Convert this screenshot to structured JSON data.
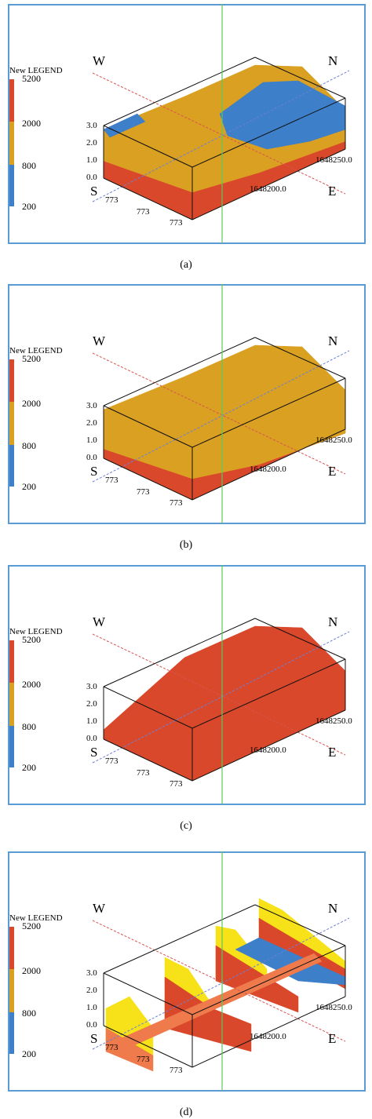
{
  "panels": [
    {
      "caption": "(a)",
      "legend": {
        "title": "New LEGEND",
        "labels": [
          "5200",
          "2000",
          "800",
          "200"
        ]
      },
      "compass": {
        "w": "W",
        "n": "N",
        "s": "S",
        "e": "E"
      },
      "z_labels": [
        "3.0",
        "2.0",
        "1.0",
        "0.0"
      ],
      "x_labels": [
        "773",
        "773",
        "773"
      ],
      "y_labels": [
        "1648250.0",
        "1648200.0"
      ]
    },
    {
      "caption": "(b)",
      "legend": {
        "title": "New LEGEND",
        "labels": [
          "5200",
          "2000",
          "800",
          "200"
        ]
      },
      "compass": {
        "w": "W",
        "n": "N",
        "s": "S",
        "e": "E"
      },
      "z_labels": [
        "3.0",
        "2.0",
        "1.0",
        "0.0"
      ],
      "x_labels": [
        "773",
        "773",
        "773"
      ],
      "y_labels": [
        "1648250.0",
        "1648200.0"
      ]
    },
    {
      "caption": "(c)",
      "legend": {
        "title": "New LEGEND",
        "labels": [
          "5200",
          "2000",
          "800",
          "200"
        ]
      },
      "compass": {
        "w": "W",
        "n": "N",
        "s": "S",
        "e": "E"
      },
      "z_labels": [
        "3.0",
        "2.0",
        "1.0",
        "0.0"
      ],
      "x_labels": [
        "773",
        "773",
        "773"
      ],
      "y_labels": [
        "1648250.0",
        "1648200.0"
      ]
    },
    {
      "caption": "(d)",
      "legend": {
        "title": "New LEGEND",
        "labels": [
          "5200",
          "2000",
          "800",
          "200"
        ]
      },
      "compass": {
        "w": "W",
        "n": "N",
        "s": "S",
        "e": "E"
      },
      "z_labels": [
        "3.0",
        "2.0",
        "1.0",
        "0.0"
      ],
      "x_labels": [
        "773",
        "773",
        "773"
      ],
      "y_labels": [
        "1648250.0",
        "1648200.0"
      ]
    }
  ]
}
